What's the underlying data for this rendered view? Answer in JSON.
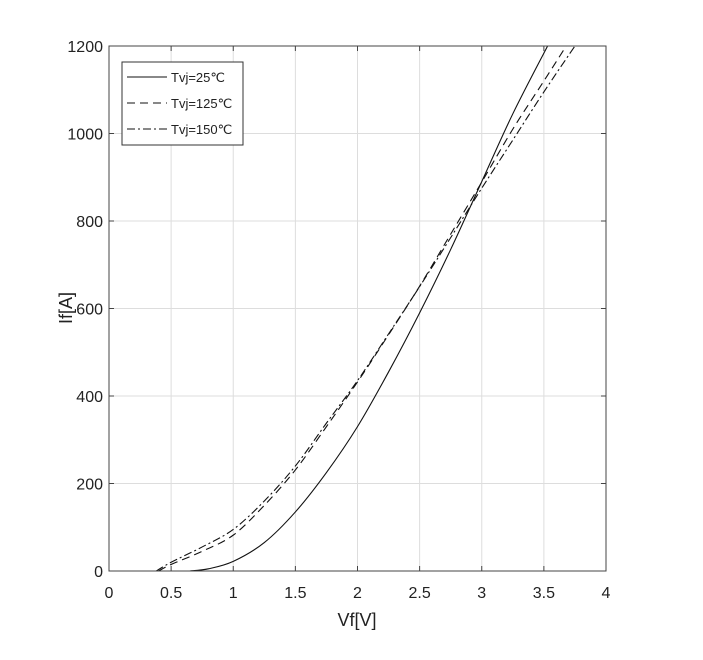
{
  "chart_data": {
    "type": "line",
    "title": "",
    "xlabel": "Vf[V]",
    "ylabel": "If[A]",
    "xlim": [
      0,
      4
    ],
    "ylim": [
      0,
      1200
    ],
    "xticks": [
      0,
      0.5,
      1,
      1.5,
      2,
      2.5,
      3,
      3.5,
      4
    ],
    "xtick_labels": [
      "0",
      "0.5",
      "1",
      "1.5",
      "2",
      "2.5",
      "3",
      "3.5",
      "4"
    ],
    "yticks": [
      0,
      200,
      400,
      600,
      800,
      1000,
      1200
    ],
    "ytick_labels": [
      "0",
      "200",
      "400",
      "600",
      "800",
      "1000",
      "1200"
    ],
    "grid": true,
    "legend_position": "top-left",
    "series": [
      {
        "name": "Tvj=25℃",
        "style": "solid",
        "x": [
          0.65,
          0.8,
          1,
          1.25,
          1.5,
          1.75,
          2,
          2.25,
          2.5,
          2.75,
          3,
          3.25,
          3.53
        ],
        "y": [
          0,
          5,
          22,
          65,
          135,
          225,
          330,
          455,
          590,
          735,
          890,
          1045,
          1200
        ]
      },
      {
        "name": "Tvj=125℃",
        "style": "dashed",
        "x": [
          0.4,
          0.5,
          0.75,
          1,
          1.25,
          1.5,
          1.75,
          2,
          2.25,
          2.5,
          2.75,
          3,
          3.25,
          3.5,
          3.68
        ],
        "y": [
          0,
          15,
          45,
          82,
          150,
          231,
          330,
          432,
          540,
          651,
          770,
          889,
          1010,
          1120,
          1200
        ]
      },
      {
        "name": "Tvj=150℃",
        "style": "dashdot",
        "x": [
          0.38,
          0.5,
          0.75,
          1,
          1.25,
          1.5,
          1.75,
          2,
          2.25,
          2.5,
          2.75,
          3,
          3.25,
          3.5,
          3.75
        ],
        "y": [
          0,
          20,
          55,
          95,
          160,
          240,
          338,
          435,
          542,
          650,
          762,
          875,
          985,
          1095,
          1200
        ]
      }
    ],
    "colors": {
      "line": "#111111",
      "grid": "#dddddd",
      "axis": "#444444"
    }
  }
}
